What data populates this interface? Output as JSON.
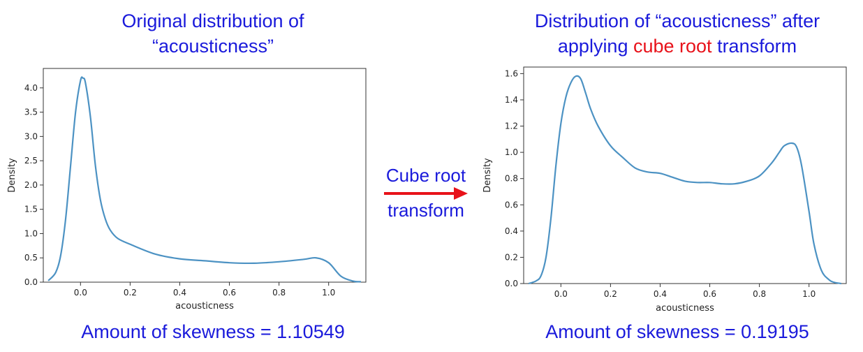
{
  "left_panel": {
    "title_line1": "Original distribution of",
    "title_line2": "“acousticness”",
    "skewness_text": "Amount of skewness = 1.10549"
  },
  "right_panel": {
    "title_line1": "Distribution of “acousticness” after",
    "title_line2_pre": "applying ",
    "title_line2_highlight": "cube root",
    "title_line2_post": " transform",
    "skewness_text": "Amount of skewness = 0.19195"
  },
  "arrow": {
    "label_line1": "Cube root",
    "label_line2": "transform",
    "color": "#e8121a"
  },
  "colors": {
    "caption": "#1a1adb",
    "highlight": "#e8121a",
    "line": "#4c92c3"
  },
  "chart_data": [
    {
      "type": "line",
      "xlabel": "acousticness",
      "ylabel": "Density",
      "xlim": [
        -0.15,
        1.15
      ],
      "ylim": [
        0,
        4.4
      ],
      "xticks": [
        0.0,
        0.2,
        0.4,
        0.6,
        0.8,
        1.0
      ],
      "yticks": [
        0.0,
        0.5,
        1.0,
        1.5,
        2.0,
        2.5,
        3.0,
        3.5,
        4.0
      ],
      "x": [
        -0.13,
        -0.1,
        -0.08,
        -0.06,
        -0.04,
        -0.02,
        0.0,
        0.01,
        0.02,
        0.04,
        0.06,
        0.08,
        0.1,
        0.12,
        0.15,
        0.2,
        0.3,
        0.4,
        0.5,
        0.6,
        0.7,
        0.8,
        0.9,
        0.95,
        1.0,
        1.05,
        1.1,
        1.13
      ],
      "y": [
        0.03,
        0.2,
        0.55,
        1.3,
        2.4,
        3.5,
        4.15,
        4.2,
        4.1,
        3.4,
        2.4,
        1.7,
        1.3,
        1.07,
        0.9,
        0.78,
        0.58,
        0.48,
        0.44,
        0.4,
        0.39,
        0.42,
        0.47,
        0.5,
        0.4,
        0.12,
        0.02,
        0.01
      ]
    },
    {
      "type": "line",
      "xlabel": "acousticness",
      "ylabel": "Density",
      "xlim": [
        -0.15,
        1.15
      ],
      "ylim": [
        0,
        1.65
      ],
      "xticks": [
        0.0,
        0.2,
        0.4,
        0.6,
        0.8,
        1.0
      ],
      "yticks": [
        0.0,
        0.2,
        0.4,
        0.6,
        0.8,
        1.0,
        1.2,
        1.4,
        1.6
      ],
      "x": [
        -0.13,
        -0.1,
        -0.08,
        -0.06,
        -0.04,
        -0.02,
        0.0,
        0.02,
        0.04,
        0.06,
        0.08,
        0.1,
        0.12,
        0.15,
        0.2,
        0.25,
        0.3,
        0.35,
        0.4,
        0.45,
        0.5,
        0.55,
        0.6,
        0.65,
        0.7,
        0.75,
        0.8,
        0.85,
        0.88,
        0.9,
        0.93,
        0.95,
        0.97,
        1.0,
        1.02,
        1.05,
        1.08,
        1.1,
        1.13
      ],
      "y": [
        0.0,
        0.02,
        0.06,
        0.2,
        0.5,
        0.9,
        1.22,
        1.42,
        1.53,
        1.58,
        1.56,
        1.45,
        1.33,
        1.2,
        1.05,
        0.96,
        0.88,
        0.85,
        0.84,
        0.81,
        0.78,
        0.77,
        0.77,
        0.76,
        0.76,
        0.78,
        0.82,
        0.92,
        1.0,
        1.05,
        1.07,
        1.04,
        0.9,
        0.55,
        0.3,
        0.1,
        0.03,
        0.01,
        0.0
      ]
    }
  ]
}
